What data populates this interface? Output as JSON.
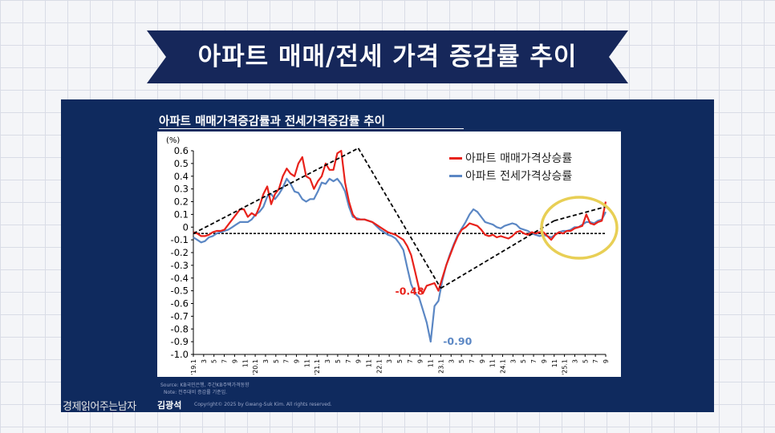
{
  "header": {
    "title": "아파트 매매/전세 가격 증감률 추이"
  },
  "panel": {
    "title": "아파트 매매가격증감률과 전세가격증감률 추이"
  },
  "footer": {
    "source_line1": "Source: KB국민은행, 주간KB주택가격동향",
    "source_line2": "Note: 전주대비 증감률 기준임.",
    "brand": "경제읽어주는남자",
    "name": "김광석",
    "copyright": "Copyright© 2025 by Gwang-Suk Kim. All rights reserved."
  },
  "colors": {
    "banner": "#16275a",
    "panel": "#0f2a5e",
    "sale": "#e8221b",
    "jeonse": "#5b87c4",
    "highlight": "#e8cf55",
    "trend": "#000000"
  },
  "chart_data": {
    "type": "line",
    "title": "아파트 매매가격증감률과 전세가격증감률 추이",
    "ylabel": "(%)",
    "ylim": [
      -1.0,
      0.6
    ],
    "y_ticks": [
      0.6,
      0.5,
      0.4,
      0.3,
      0.2,
      0.1,
      0,
      -0.1,
      -0.2,
      -0.3,
      -0.4,
      -0.5,
      -0.6,
      -0.7,
      -0.8,
      -0.9,
      -1.0
    ],
    "y_tick_labels": [
      "0.6",
      "0.5",
      "0.4",
      "0.3",
      "0.2",
      "0.1",
      "0",
      "-0.1",
      "-0.2",
      "-0.3",
      "-0.4",
      "-0.5",
      "-0.6",
      "-0.7",
      "-0.8",
      "-0.9",
      "-1.0"
    ],
    "x_tick_labels": [
      "'19.1",
      "3",
      "5",
      "7",
      "9",
      "11",
      "'20.1",
      "3",
      "5",
      "7",
      "9",
      "11",
      "'21.1",
      "3",
      "5",
      "7",
      "9",
      "11",
      "22.1",
      "3",
      "5",
      "7",
      "9",
      "11",
      "23.1",
      "3",
      "5",
      "7",
      "9",
      "11",
      "24.1",
      "3",
      "5",
      "7",
      "9",
      "11",
      "'25.1",
      "3",
      "5",
      "7",
      "9"
    ],
    "baseline": -0.05,
    "series": [
      {
        "name": "아파트 매매가격상승률",
        "color": "#e8221b",
        "values": [
          -0.04,
          -0.05,
          -0.07,
          -0.07,
          -0.06,
          -0.04,
          -0.03,
          -0.03,
          -0.02,
          0.02,
          0.06,
          0.1,
          0.14,
          0.14,
          0.08,
          0.11,
          0.09,
          0.16,
          0.26,
          0.32,
          0.18,
          0.26,
          0.3,
          0.4,
          0.46,
          0.42,
          0.4,
          0.5,
          0.55,
          0.4,
          0.38,
          0.3,
          0.36,
          0.4,
          0.5,
          0.45,
          0.45,
          0.58,
          0.6,
          0.35,
          0.2,
          0.1,
          0.06,
          0.06,
          0.06,
          0.05,
          0.04,
          0.02,
          0.0,
          -0.02,
          -0.04,
          -0.05,
          -0.06,
          -0.08,
          -0.1,
          -0.15,
          -0.22,
          -0.35,
          -0.48,
          -0.52,
          -0.46,
          -0.45,
          -0.44,
          -0.5,
          -0.4,
          -0.3,
          -0.22,
          -0.14,
          -0.07,
          -0.02,
          0.0,
          0.03,
          0.02,
          0.01,
          -0.02,
          -0.06,
          -0.07,
          -0.06,
          -0.08,
          -0.07,
          -0.08,
          -0.09,
          -0.07,
          -0.04,
          -0.03,
          -0.05,
          -0.06,
          -0.04,
          -0.05,
          -0.04,
          -0.04,
          -0.07,
          -0.1,
          -0.06,
          -0.04,
          -0.05,
          -0.03,
          -0.03,
          -0.01,
          0.0,
          0.01,
          0.1,
          0.03,
          0.02,
          0.04,
          0.05,
          0.2
        ]
      },
      {
        "name": "아파트 전세가격상승률",
        "color": "#5b87c4",
        "values": [
          -0.08,
          -0.1,
          -0.12,
          -0.11,
          -0.08,
          -0.07,
          -0.05,
          -0.04,
          -0.03,
          -0.02,
          0.0,
          0.02,
          0.04,
          0.04,
          0.04,
          0.06,
          0.1,
          0.12,
          0.16,
          0.24,
          0.26,
          0.22,
          0.26,
          0.31,
          0.38,
          0.34,
          0.28,
          0.27,
          0.22,
          0.2,
          0.22,
          0.22,
          0.28,
          0.35,
          0.34,
          0.38,
          0.36,
          0.38,
          0.34,
          0.28,
          0.16,
          0.08,
          0.07,
          0.06,
          0.06,
          0.05,
          0.04,
          0.01,
          -0.02,
          -0.04,
          -0.06,
          -0.07,
          -0.09,
          -0.13,
          -0.18,
          -0.32,
          -0.45,
          -0.52,
          -0.55,
          -0.65,
          -0.75,
          -0.9,
          -0.62,
          -0.58,
          -0.42,
          -0.3,
          -0.21,
          -0.13,
          -0.06,
          -0.01,
          0.04,
          0.1,
          0.14,
          0.12,
          0.08,
          0.04,
          0.03,
          0.02,
          0.0,
          -0.01,
          0.01,
          0.02,
          0.03,
          0.02,
          -0.01,
          -0.02,
          -0.03,
          -0.05,
          -0.06,
          -0.07,
          -0.06,
          -0.07,
          -0.08,
          -0.06,
          -0.04,
          -0.03,
          -0.03,
          -0.02,
          0.0,
          0.0,
          0.02,
          0.04,
          0.04,
          0.03,
          0.05,
          0.06,
          0.12
        ]
      }
    ],
    "trend_lines": [
      {
        "from": [
          "'19.1",
          -0.05
        ],
        "to": [
          "'21.9",
          0.62
        ]
      },
      {
        "from": [
          "'21.9",
          0.62
        ],
        "to": [
          "'23.1",
          -0.48
        ]
      },
      {
        "from": [
          "'23.1",
          -0.48
        ],
        "to": [
          "'24.11",
          0.05
        ]
      },
      {
        "from": [
          "'24.11",
          0.05
        ],
        "to": [
          "'25.9",
          0.16
        ]
      }
    ],
    "annotations": [
      {
        "text": "-0.48",
        "x": "'22.11",
        "y": -0.48,
        "color": "#e8221b"
      },
      {
        "text": "-0.90",
        "x": "'23.3",
        "y": -0.9,
        "color": "#5b87c4"
      }
    ],
    "highlight": {
      "shape": "circle",
      "around": "'25 recent rebound",
      "color": "#e8cf55"
    },
    "legend_position": "top-right",
    "grid": false
  }
}
